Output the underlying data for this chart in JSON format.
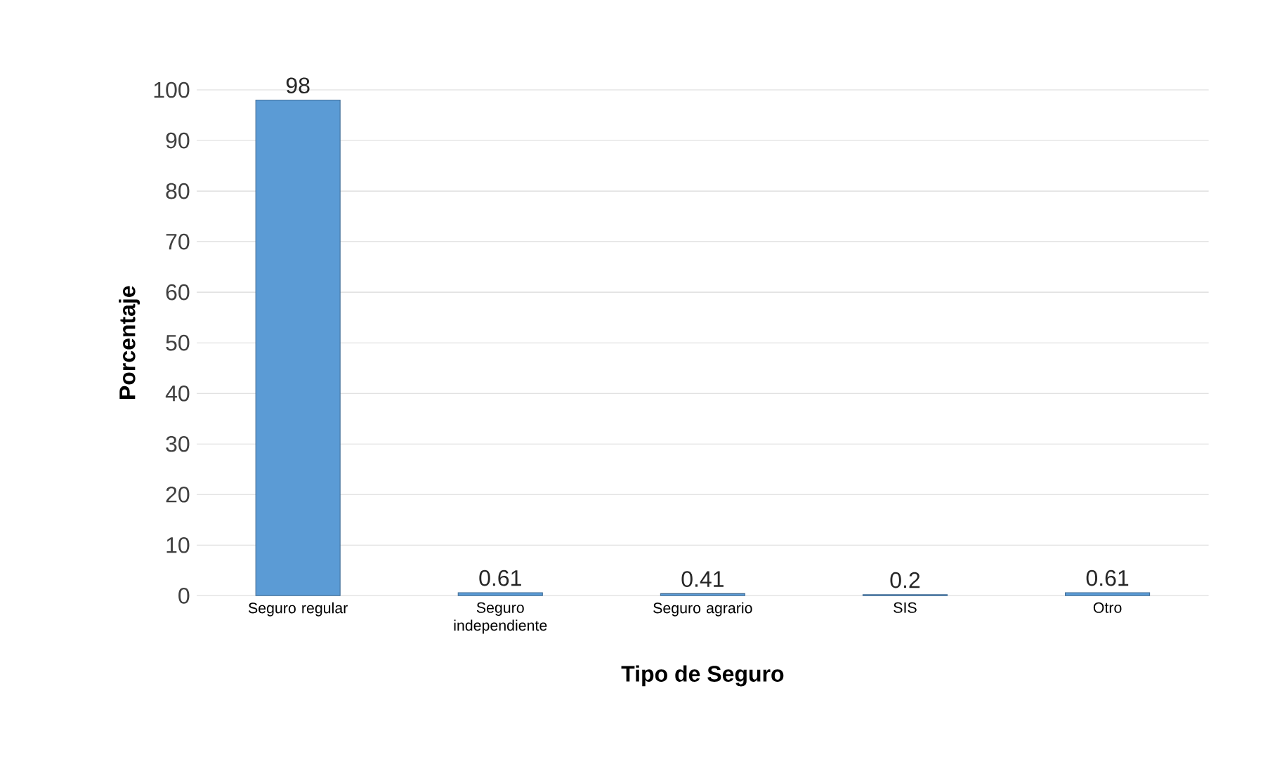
{
  "chart_data": {
    "type": "bar",
    "xlabel": "Tipo de Seguro",
    "ylabel": "Porcentaje",
    "categories": [
      "Seguro regular",
      "Seguro independiente",
      "Seguro agrario",
      "SIS",
      "Otro"
    ],
    "values": [
      98,
      0.61,
      0.41,
      0.2,
      0.61
    ],
    "color": "#5b9bd5",
    "ylim": [
      0,
      100
    ],
    "yticks": [
      0,
      10,
      20,
      30,
      40,
      50,
      60,
      70,
      80,
      90,
      100
    ],
    "grid": "y",
    "data_labels": true
  }
}
